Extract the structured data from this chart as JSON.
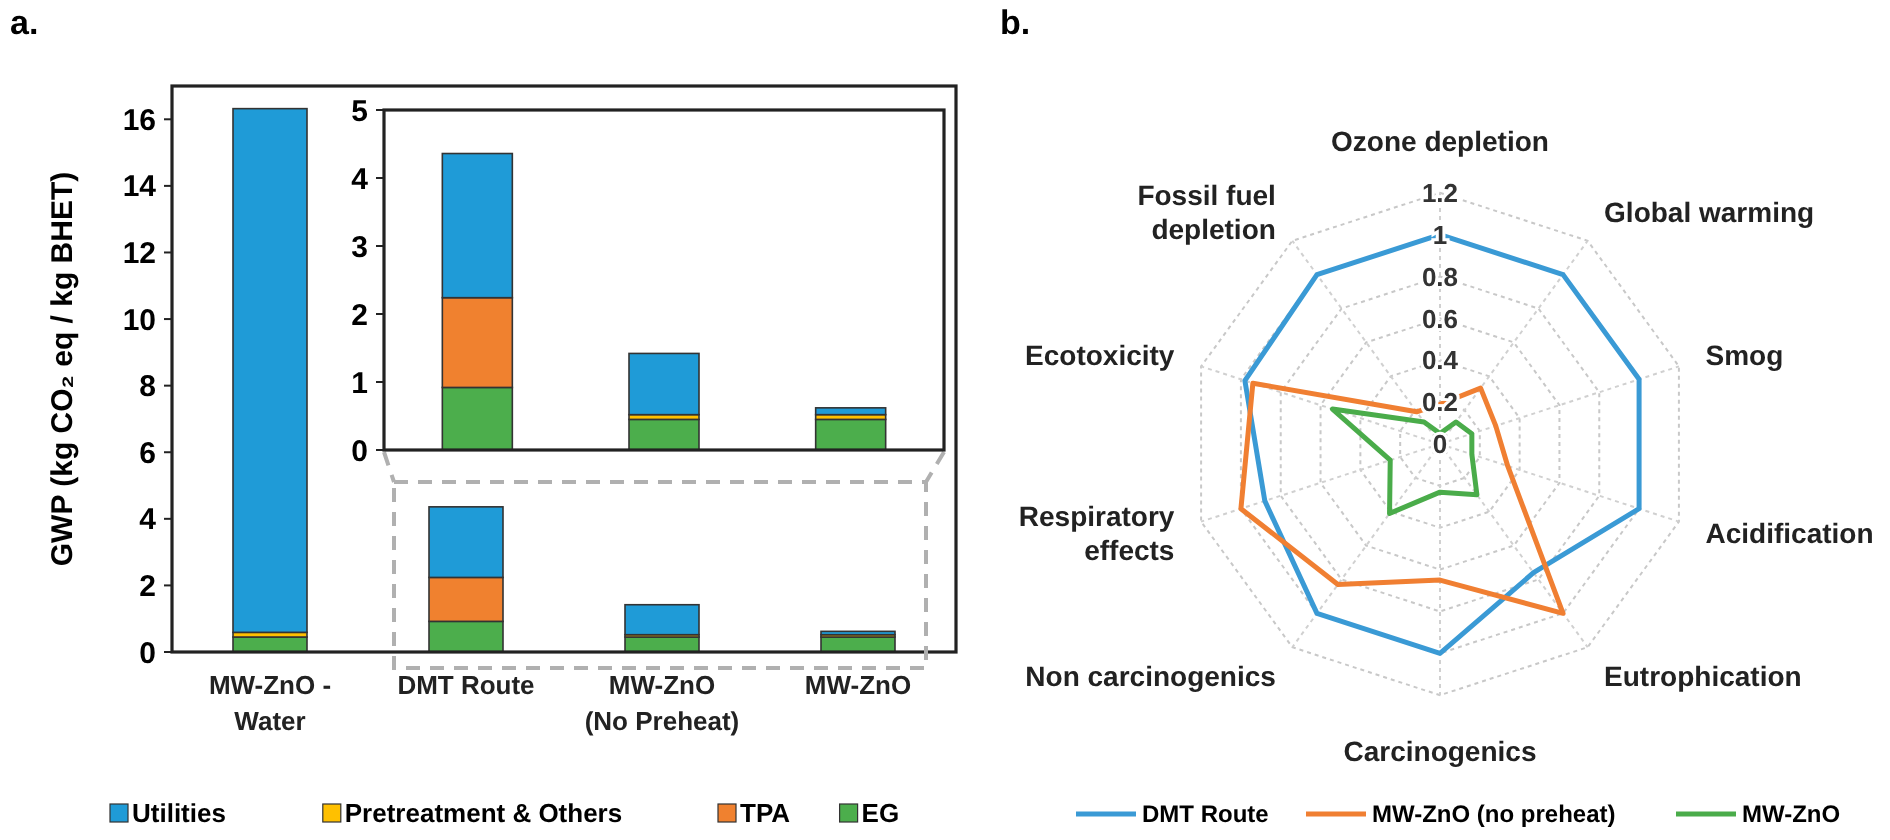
{
  "chart_data": [
    {
      "type": "bar",
      "title": "a.",
      "ylabel": "GWP (kg CO₂ eq / kg BHET)",
      "categories": [
        "MW-ZnO -\nWater",
        "DMT Route",
        "MW-ZnO\n(No Preheat)",
        "MW-ZnO"
      ],
      "stacked": true,
      "legend": "bottom",
      "ylim": [
        0,
        17
      ],
      "yticks": [
        0,
        2,
        4,
        6,
        8,
        10,
        12,
        14,
        16
      ],
      "series": [
        {
          "name": "EG",
          "color": "#4cae4c",
          "values": [
            0.45,
            0.92,
            0.45,
            0.45
          ]
        },
        {
          "name": "TPA",
          "color": "#f0812f",
          "values": [
            0,
            1.32,
            0,
            0
          ]
        },
        {
          "name": "Pretreatment & Others",
          "color": "#ffc000",
          "values": [
            0.14,
            0,
            0.07,
            0.07
          ]
        },
        {
          "name": "Utilities",
          "color": "#1f9bd7",
          "values": [
            15.73,
            2.12,
            0.9,
            0.1
          ]
        }
      ]
    },
    {
      "type": "bar",
      "categories": [
        null,
        null,
        null
      ],
      "stacked": true,
      "tick_labels": "y",
      "ylim": [
        0,
        5
      ],
      "yticks": [
        0,
        1,
        2,
        3,
        4,
        5
      ],
      "series": [
        {
          "color": "#4cae4c",
          "values": [
            0.92,
            0.45,
            0.45
          ]
        },
        {
          "color": "#f0812f",
          "values": [
            1.32,
            0,
            0
          ]
        },
        {
          "color": "#ffc000",
          "values": [
            0,
            0.07,
            0.07
          ]
        },
        {
          "color": "#1f9bd7",
          "values": [
            2.12,
            0.9,
            0.1
          ]
        }
      ]
    },
    {
      "type": "radar",
      "title": "b.",
      "categories": [
        "Ozone depletion",
        "Global warming",
        "Smog",
        "Acidification",
        "Eutrophication",
        "Carcinogenics",
        "Non carcinogenics",
        "Respiratory\neffects",
        "Ecotoxicity",
        "Fossil fuel\ndepletion"
      ],
      "ylim": [
        0,
        1.2
      ],
      "yticks": [
        0,
        0.2,
        0.4,
        0.6,
        0.8,
        1,
        1.2
      ],
      "grid": true,
      "legend": "bottom",
      "series": [
        {
          "name": "DMT Route",
          "color": "#3a9ad5",
          "values": [
            1,
            1,
            1,
            1,
            0.76,
            1,
            1,
            0.88,
            0.98,
            1
          ]
        },
        {
          "name": "MW-ZnO (no preheat)",
          "color": "#f07f32",
          "values": [
            0.19,
            0.33,
            0.28,
            0.34,
            1,
            0.65,
            0.83,
            1,
            0.94,
            0.19
          ]
        },
        {
          "name": "MW-ZnO",
          "color": "#4aac4a",
          "values": [
            0.05,
            0.13,
            0.16,
            0.16,
            0.3,
            0.23,
            0.41,
            0.25,
            0.54,
            0.13
          ]
        }
      ]
    }
  ]
}
